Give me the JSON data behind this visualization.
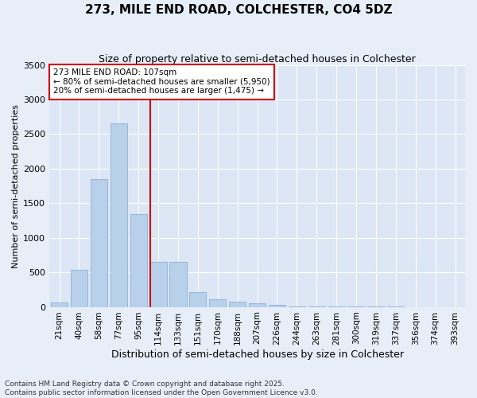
{
  "title1": "273, MILE END ROAD, COLCHESTER, CO4 5DZ",
  "title2": "Size of property relative to semi-detached houses in Colchester",
  "xlabel": "Distribution of semi-detached houses by size in Colchester",
  "ylabel": "Number of semi-detached properties",
  "footnote": "Contains HM Land Registry data © Crown copyright and database right 2025.\nContains public sector information licensed under the Open Government Licence v3.0.",
  "bar_labels": [
    "21sqm",
    "40sqm",
    "58sqm",
    "77sqm",
    "95sqm",
    "114sqm",
    "133sqm",
    "151sqm",
    "170sqm",
    "188sqm",
    "207sqm",
    "226sqm",
    "244sqm",
    "263sqm",
    "281sqm",
    "300sqm",
    "319sqm",
    "337sqm",
    "356sqm",
    "374sqm",
    "393sqm"
  ],
  "bar_values": [
    65,
    535,
    1850,
    2650,
    1340,
    650,
    650,
    210,
    110,
    70,
    50,
    30,
    8,
    5,
    3,
    2,
    1,
    1,
    0,
    0,
    0
  ],
  "bar_color": "#b8d0ea",
  "bar_edgecolor": "#8ab0d8",
  "vline_color": "#cc0000",
  "vline_pos": 5.0,
  "annotation_title": "273 MILE END ROAD: 107sqm",
  "annotation_line1": "← 80% of semi-detached houses are smaller (5,950)",
  "annotation_line2": "20% of semi-detached houses are larger (1,475) →",
  "ylim": [
    0,
    3500
  ],
  "yticks": [
    0,
    500,
    1000,
    1500,
    2000,
    2500,
    3000,
    3500
  ],
  "background_color": "#e8eef8",
  "plot_bg_color": "#dce6f4",
  "grid_color": "#ffffff",
  "annotation_box_facecolor": "#ffffff",
  "annotation_box_edgecolor": "#cc0000",
  "title1_fontsize": 11,
  "title2_fontsize": 9,
  "xlabel_fontsize": 9,
  "ylabel_fontsize": 8,
  "tick_fontsize": 7.5,
  "ytick_fontsize": 8,
  "footnote_fontsize": 6.5
}
